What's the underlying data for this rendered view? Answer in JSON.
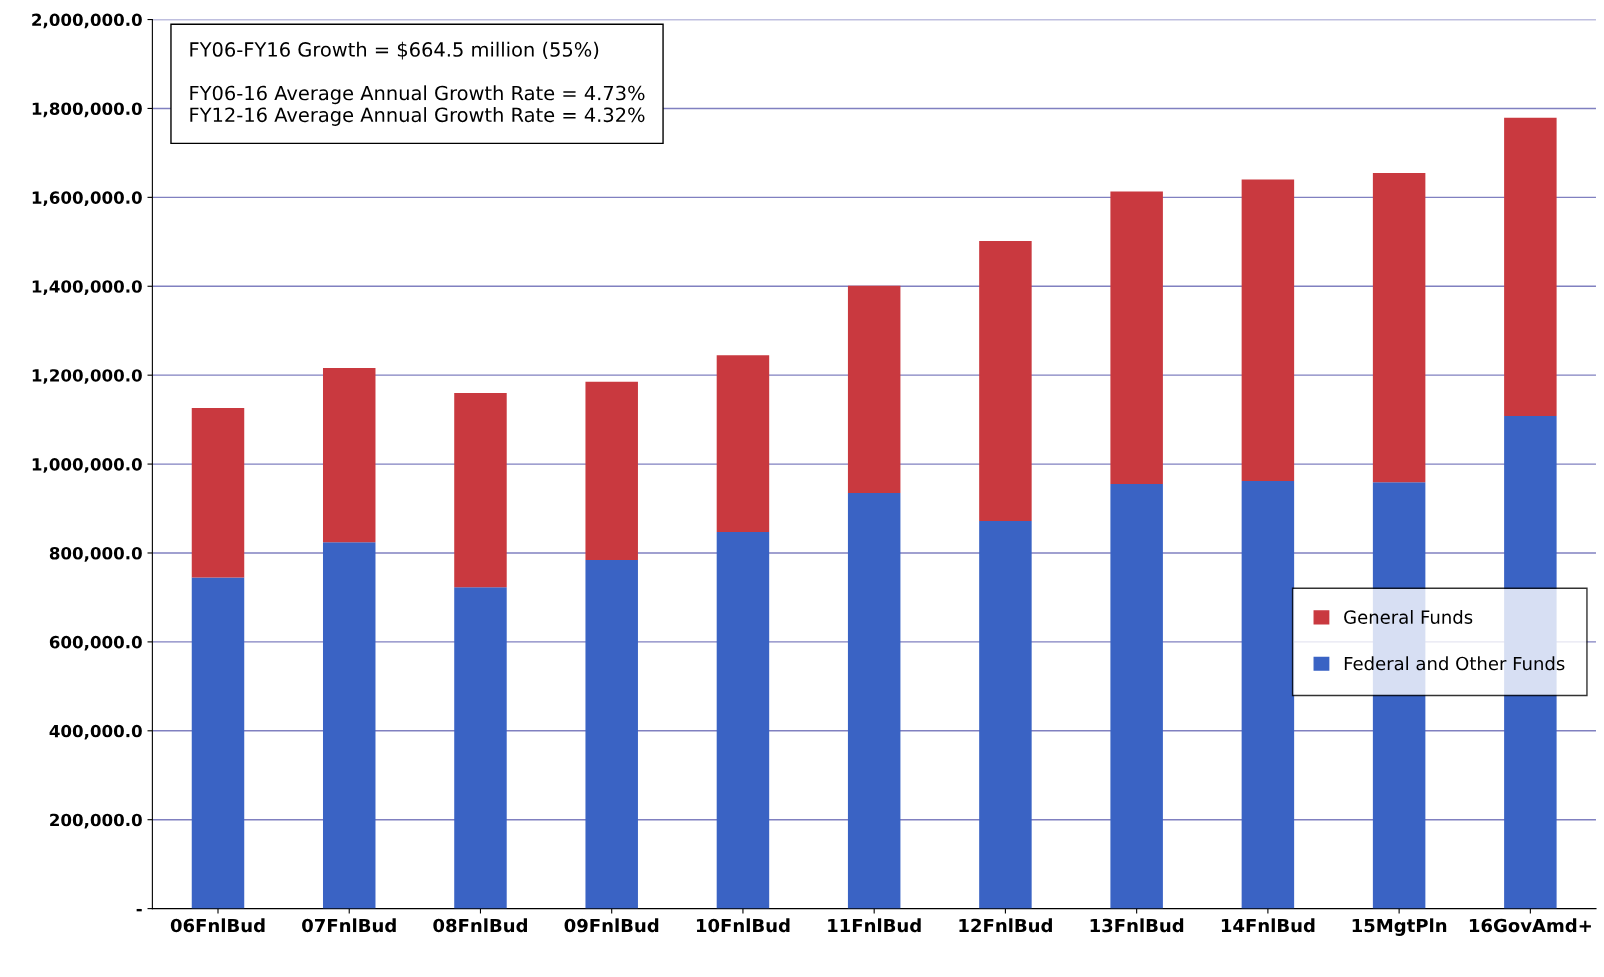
{
  "chart_data": {
    "type": "bar",
    "stacked": true,
    "categories": [
      "06FnlBud",
      "07FnlBud",
      "08FnlBud",
      "09FnlBud",
      "10FnlBud",
      "11FnlBud",
      "12FnlBud",
      "13FnlBud",
      "14FnlBud",
      "15MgtPln",
      "16GovAmd+"
    ],
    "series": [
      {
        "name": "Federal and Other Funds",
        "color": "#3a63c4",
        "values": [
          745000,
          824000,
          723000,
          784000,
          847000,
          935000,
          872000,
          955000,
          962000,
          959000,
          1108000
        ]
      },
      {
        "name": "General Funds",
        "color": "#c9393f",
        "values": [
          381000,
          392000,
          437000,
          401000,
          398000,
          466000,
          630000,
          658000,
          678000,
          696000,
          671000
        ]
      }
    ],
    "ylim": [
      0,
      2000000
    ],
    "yticks": [
      {
        "value": 0,
        "label": "-"
      },
      {
        "value": 200000,
        "label": "200,000.0"
      },
      {
        "value": 400000,
        "label": "400,000.0"
      },
      {
        "value": 600000,
        "label": "600,000.0"
      },
      {
        "value": 800000,
        "label": "800,000.0"
      },
      {
        "value": 1000000,
        "label": "1,000,000.0"
      },
      {
        "value": 1200000,
        "label": "1,200,000.0"
      },
      {
        "value": 1400000,
        "label": "1,400,000.0"
      },
      {
        "value": 1600000,
        "label": "1,600,000.0"
      },
      {
        "value": 1800000,
        "label": "1,800,000.0"
      },
      {
        "value": 2000000,
        "label": "2,000,000.0"
      }
    ],
    "grid": "y",
    "legend": "center right",
    "annotations": [
      "FY06-FY16 Growth = $664.5 million (55%)\n\nFY06-16 Average Annual Growth Rate = 4.73%\nFY12-16 Average Annual Growth Rate = 4.32%"
    ]
  }
}
